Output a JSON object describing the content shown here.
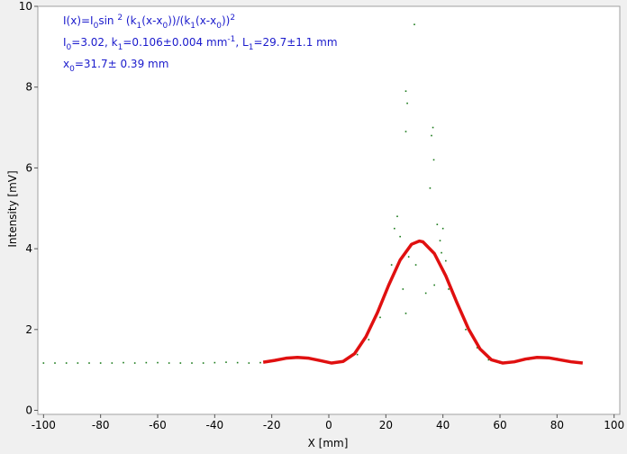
{
  "chart_data": {
    "type": "scatter",
    "xlabel": "X [mm]",
    "ylabel": "Intensity [mV]",
    "xlim": [
      -102,
      102
    ],
    "ylim": [
      -0.1,
      10
    ],
    "xticks": [
      -100,
      -80,
      -60,
      -40,
      -20,
      0,
      20,
      40,
      60,
      80,
      100
    ],
    "yticks": [
      0,
      2,
      4,
      6,
      8,
      10
    ],
    "annotations": [
      [
        {
          "text": "I(x)=I"
        },
        {
          "text": "0",
          "shift": "sub"
        },
        {
          "text": "sin "
        },
        {
          "text": "2",
          "shift": "sup"
        },
        {
          "text": " (k"
        },
        {
          "text": "1",
          "shift": "sub"
        },
        {
          "text": "(x-x"
        },
        {
          "text": "0",
          "shift": "sub"
        },
        {
          "text": "))/(k"
        },
        {
          "text": "1",
          "shift": "sub"
        },
        {
          "text": "(x-x"
        },
        {
          "text": "0",
          "shift": "sub"
        },
        {
          "text": "))"
        },
        {
          "text": "2",
          "shift": "sup"
        }
      ],
      [
        {
          "text": "I"
        },
        {
          "text": "0",
          "shift": "sub"
        },
        {
          "text": "=3.02,  k"
        },
        {
          "text": "1",
          "shift": "sub"
        },
        {
          "text": "=0.106±0.004 mm"
        },
        {
          "text": "-1",
          "shift": "sup"
        },
        {
          "text": ",   L"
        },
        {
          "text": "1",
          "shift": "sub"
        },
        {
          "text": "=29.7±1.1 mm"
        }
      ],
      [
        {
          "text": "x"
        },
        {
          "text": "0",
          "shift": "sub"
        },
        {
          "text": "=31.7±  0.39 mm"
        }
      ]
    ],
    "annotation_color": "#1a1acc",
    "series": [
      {
        "type": "scatter",
        "color": "#1a7a1a",
        "x": [
          -100,
          -96,
          -92,
          -88,
          -84,
          -80,
          -76,
          -72,
          -68,
          -64,
          -60,
          -56,
          -52,
          -48,
          -44,
          -40,
          -36,
          -32,
          -28,
          -24,
          -20,
          -15,
          -10,
          -5,
          0,
          5,
          10,
          14,
          18,
          20,
          22,
          23,
          24,
          25,
          26,
          27,
          27,
          27.5,
          27,
          28,
          29,
          30,
          30.5,
          32,
          34,
          35.5,
          36,
          36.5,
          36.8,
          37,
          38,
          39,
          39.5,
          40,
          41,
          42,
          44,
          48,
          52,
          56,
          60,
          64,
          70,
          75,
          80,
          85
        ],
        "values": [
          1.17,
          1.17,
          1.17,
          1.17,
          1.17,
          1.17,
          1.17,
          1.18,
          1.17,
          1.18,
          1.18,
          1.17,
          1.17,
          1.17,
          1.17,
          1.18,
          1.19,
          1.18,
          1.17,
          1.18,
          1.23,
          1.28,
          1.31,
          1.27,
          1.17,
          1.2,
          1.38,
          1.75,
          2.3,
          2.9,
          3.6,
          4.5,
          4.8,
          4.3,
          3.0,
          6.9,
          2.4,
          7.6,
          7.9,
          3.8,
          4.1,
          9.55,
          3.6,
          4.2,
          2.9,
          5.5,
          6.8,
          7.0,
          6.2,
          3.1,
          4.6,
          4.2,
          3.9,
          4.5,
          3.7,
          3.0,
          2.85,
          2.0,
          1.55,
          1.25,
          1.17,
          1.18,
          1.26,
          1.31,
          1.28,
          1.2
        ]
      },
      {
        "type": "line",
        "color": "#e01010",
        "x": [
          -23,
          -19,
          -15,
          -11,
          -7,
          -3,
          1,
          5,
          9,
          13,
          17,
          21,
          25,
          29,
          31.7,
          33,
          37,
          41,
          45,
          49,
          53,
          57,
          61,
          65,
          69,
          73,
          77,
          81,
          85,
          89
        ],
        "values": [
          1.19,
          1.235,
          1.29,
          1.31,
          1.29,
          1.23,
          1.17,
          1.21,
          1.4,
          1.82,
          2.41,
          3.1,
          3.72,
          4.11,
          4.19,
          4.17,
          3.88,
          3.33,
          2.65,
          2.01,
          1.52,
          1.25,
          1.17,
          1.2,
          1.27,
          1.31,
          1.3,
          1.25,
          1.2,
          1.17
        ]
      }
    ]
  }
}
